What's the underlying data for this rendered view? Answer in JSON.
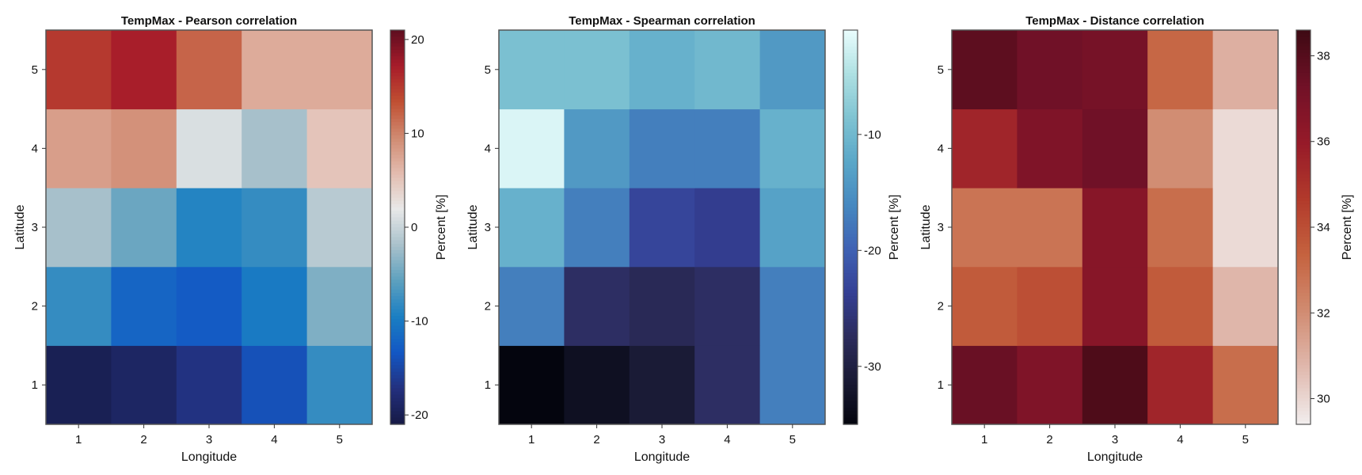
{
  "chart_data": [
    {
      "type": "heatmap",
      "title": "TempMax - Pearson correlation",
      "xlabel": "Longitude",
      "ylabel": "Latitude",
      "x_ticks": [
        1,
        2,
        3,
        4,
        5
      ],
      "y_ticks": [
        1,
        2,
        3,
        4,
        5
      ],
      "colorbar_label": "Percent [%]",
      "colorbar_range": [
        -21,
        21
      ],
      "colorbar_ticks": [
        -20,
        -10,
        0,
        10,
        20
      ],
      "colormap": "balance",
      "values": [
        [
          -20,
          -19,
          -17,
          -14,
          -8
        ],
        [
          -8,
          -12,
          -13,
          -10,
          -4
        ],
        [
          -2,
          -5,
          -9,
          -8,
          -1
        ],
        [
          8,
          9,
          1,
          -2,
          5
        ],
        [
          15,
          17,
          12,
          7,
          7
        ]
      ]
    },
    {
      "type": "heatmap",
      "title": "TempMax - Spearman correlation",
      "xlabel": "Longitude",
      "ylabel": "Latitude",
      "x_ticks": [
        1,
        2,
        3,
        4,
        5
      ],
      "y_ticks": [
        1,
        2,
        3,
        4,
        5
      ],
      "colorbar_label": "Percent [%]",
      "colorbar_range": [
        -35,
        -1
      ],
      "colorbar_ticks": [
        -30,
        -20,
        -10
      ],
      "colormap": "ice",
      "values": [
        [
          -35,
          -33,
          -31,
          -27,
          -17
        ],
        [
          -17,
          -27,
          -28,
          -27,
          -17
        ],
        [
          -11,
          -17,
          -23,
          -24,
          -13
        ],
        [
          -2,
          -14,
          -17,
          -17,
          -11
        ],
        [
          -9,
          -9,
          -11,
          -10,
          -14
        ]
      ]
    },
    {
      "type": "heatmap",
      "title": "TempMax - Distance correlation",
      "xlabel": "Longitude",
      "ylabel": "Latitude",
      "x_ticks": [
        1,
        2,
        3,
        4,
        5
      ],
      "y_ticks": [
        1,
        2,
        3,
        4,
        5
      ],
      "colorbar_label": "Percent [%]",
      "colorbar_range": [
        29.4,
        38.6
      ],
      "colorbar_ticks": [
        30,
        32,
        34,
        36,
        38
      ],
      "colormap": "amp",
      "values": [
        [
          37.5,
          36.8,
          38.2,
          35.5,
          33.0
        ],
        [
          33.6,
          34.0,
          36.5,
          33.6,
          30.8
        ],
        [
          32.8,
          32.8,
          36.5,
          33.0,
          29.9
        ],
        [
          35.5,
          36.8,
          37.3,
          32.0,
          29.9
        ],
        [
          37.8,
          37.3,
          37.1,
          33.2,
          31.0
        ]
      ]
    }
  ]
}
